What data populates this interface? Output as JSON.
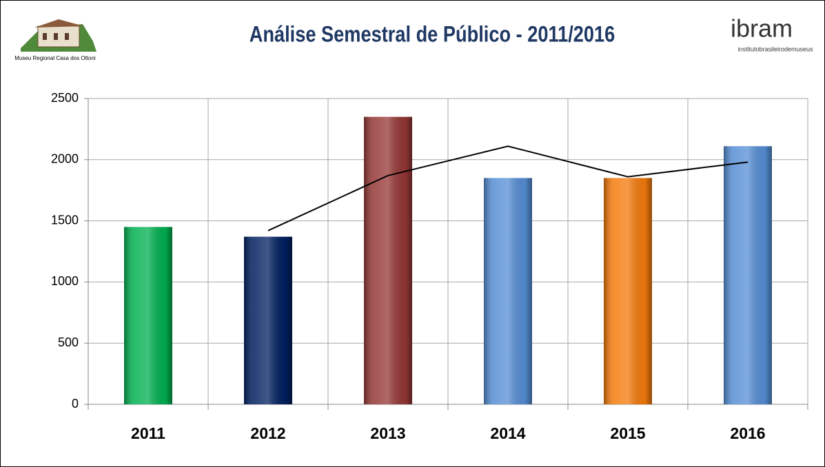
{
  "header": {
    "museum_name": "Museu Regional Casa dos Ottoni",
    "logo_text": "ibram",
    "logo_subtext": "institutobrasileirodemuseus"
  },
  "chart_data": {
    "type": "bar",
    "title": "Análise Semestral de Público - 2011/2016",
    "categories": [
      "2011",
      "2012",
      "2013",
      "2014",
      "2015",
      "2016"
    ],
    "series": [
      {
        "type": "bar",
        "colors": [
          "#00b050",
          "#002060",
          "#953735",
          "#558ed5",
          "#f47a0c",
          "#558ed5"
        ],
        "values": [
          1450,
          1370,
          2350,
          1850,
          1850,
          2110
        ]
      },
      {
        "type": "line",
        "color": "#000000",
        "values": [
          null,
          1420,
          1870,
          2110,
          1860,
          1980
        ]
      }
    ],
    "ylim": [
      0,
      2500
    ],
    "yticks": [
      0,
      500,
      1000,
      1500,
      2000,
      2500
    ],
    "grid": true
  }
}
